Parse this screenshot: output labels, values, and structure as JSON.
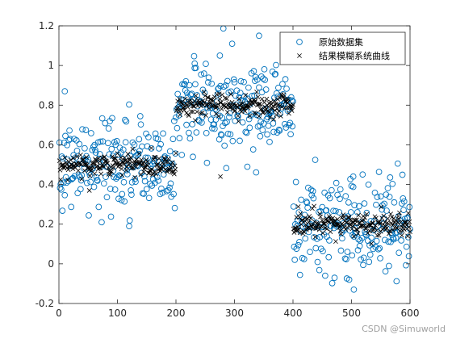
{
  "chart_data": {
    "type": "scatter",
    "title": "",
    "xlabel": "",
    "ylabel": "",
    "xlim": [
      0,
      600
    ],
    "ylim": [
      -0.2,
      1.2
    ],
    "x_ticks": [
      0,
      100,
      200,
      300,
      400,
      500,
      600
    ],
    "y_ticks": [
      -0.2,
      0,
      0.2,
      0.4,
      0.6,
      0.8,
      1,
      1.2
    ],
    "x_tick_labels": [
      "0",
      "100",
      "200",
      "300",
      "400",
      "500",
      "600"
    ],
    "y_tick_labels": [
      "-0.2",
      "0",
      "0.2",
      "0.4",
      "0.6",
      "0.8",
      "1",
      "1.2"
    ],
    "grid": false,
    "legend_position": "top-right",
    "segments": [
      {
        "x_range": [
          1,
          200
        ],
        "center": 0.5
      },
      {
        "x_range": [
          201,
          400
        ],
        "center": 0.8
      },
      {
        "x_range": [
          401,
          600
        ],
        "center": 0.2
      }
    ],
    "series": [
      {
        "name": "原始数据集",
        "marker": "circle",
        "color": "#0072BD",
        "noise_spread": 0.12,
        "highlighted_points": [
          {
            "x": 342,
            "y": 1.15
          },
          {
            "x": 10,
            "y": 0.87
          },
          {
            "x": 120,
            "y": 0.19
          },
          {
            "x": 504,
            "y": -0.13
          },
          {
            "x": 496,
            "y": -0.08
          },
          {
            "x": 503,
            "y": 0.44
          },
          {
            "x": 275,
            "y": 1.05
          },
          {
            "x": 232,
            "y": 1.01
          }
        ]
      },
      {
        "name": "结果模糊系统曲线",
        "marker": "x",
        "color": "#000000",
        "noise_spread": 0.03,
        "highlighted_points": [
          {
            "x": 276,
            "y": 0.44
          },
          {
            "x": 52,
            "y": 0.37
          }
        ]
      }
    ]
  },
  "watermark": "CSDN @Simuworld"
}
